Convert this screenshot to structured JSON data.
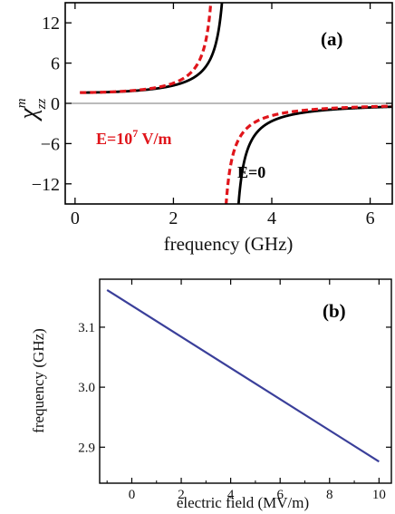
{
  "chart_data": [
    {
      "type": "line",
      "panel_label": "(a)",
      "xlabel": "frequency (GHz)",
      "ylabel_symbol": "χ",
      "ylabel_sup": "m",
      "ylabel_sub": "zz",
      "xlim": [
        -0.2,
        6.45
      ],
      "ylim": [
        -15,
        15
      ],
      "xticks": [
        0,
        2,
        4,
        6
      ],
      "xtick_labels": [
        "0",
        "2",
        "4",
        "6"
      ],
      "yticks": [
        12,
        6,
        0,
        -6,
        -12
      ],
      "ytick_labels": [
        "12",
        "6",
        "0",
        "−6",
        "−12"
      ],
      "series": [
        {
          "resonance": 3.16,
          "color": "#000000",
          "style": "solid",
          "label": "E=0"
        },
        {
          "resonance": 2.92,
          "color": "#e0151b",
          "style": "dashed",
          "label_main": "E=10",
          "label_sup": "7",
          "label_unit": " V/m"
        }
      ],
      "x_range_plotted": [
        0.1,
        6.45
      ]
    },
    {
      "type": "line",
      "panel_label": "(b)",
      "xlabel": "electric field (MV/m)",
      "ylabel": "frequency (GHz)",
      "xlim": [
        -1.3,
        10.5
      ],
      "ylim": [
        2.84,
        3.18
      ],
      "xticks": [
        0,
        2,
        4,
        6,
        8,
        10
      ],
      "xtick_labels": [
        "0",
        "2",
        "4",
        "6",
        "8",
        "10"
      ],
      "yticks": [
        3.1,
        3.0,
        2.9
      ],
      "ytick_labels": [
        "3.1",
        "3.0",
        "2.9"
      ],
      "series": [
        {
          "color": "#3a3f9a",
          "x": [
            -1,
            10
          ],
          "y": [
            3.162,
            2.876
          ]
        }
      ]
    }
  ]
}
